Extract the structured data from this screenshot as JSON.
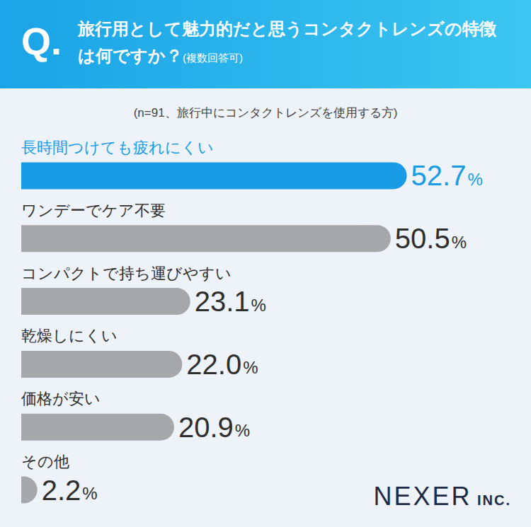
{
  "chart_data": {
    "type": "bar",
    "orientation": "horizontal",
    "question_mark": "Q.",
    "title": "旅行用として魅力的だと思うコンタクトレンズの特徴は何ですか？",
    "title_note": "(複数回答可)",
    "subtitle": "(n=91、旅行中にコンタクトレンズを使用する方)",
    "credit": "NEXER INC.",
    "categories": [
      "長時間つけても疲れにくい",
      "ワンデーでケア不要",
      "コンパクトで持ち運びやすい",
      "乾燥しにくい",
      "価格が安い",
      "その他"
    ],
    "values": [
      52.7,
      50.5,
      23.1,
      22.0,
      20.9,
      2.2
    ],
    "value_labels": [
      "52.7%",
      "50.5%",
      "23.1%",
      "22.0%",
      "20.9%",
      "2.2%"
    ],
    "colors": [
      "#1a9be6",
      "#a6a7ab",
      "#a6a7ab",
      "#a6a7ab",
      "#a6a7ab",
      "#a6a7ab"
    ],
    "xlim": [
      0,
      60
    ],
    "grid": false,
    "tick_labels": false,
    "data_labels": true
  }
}
